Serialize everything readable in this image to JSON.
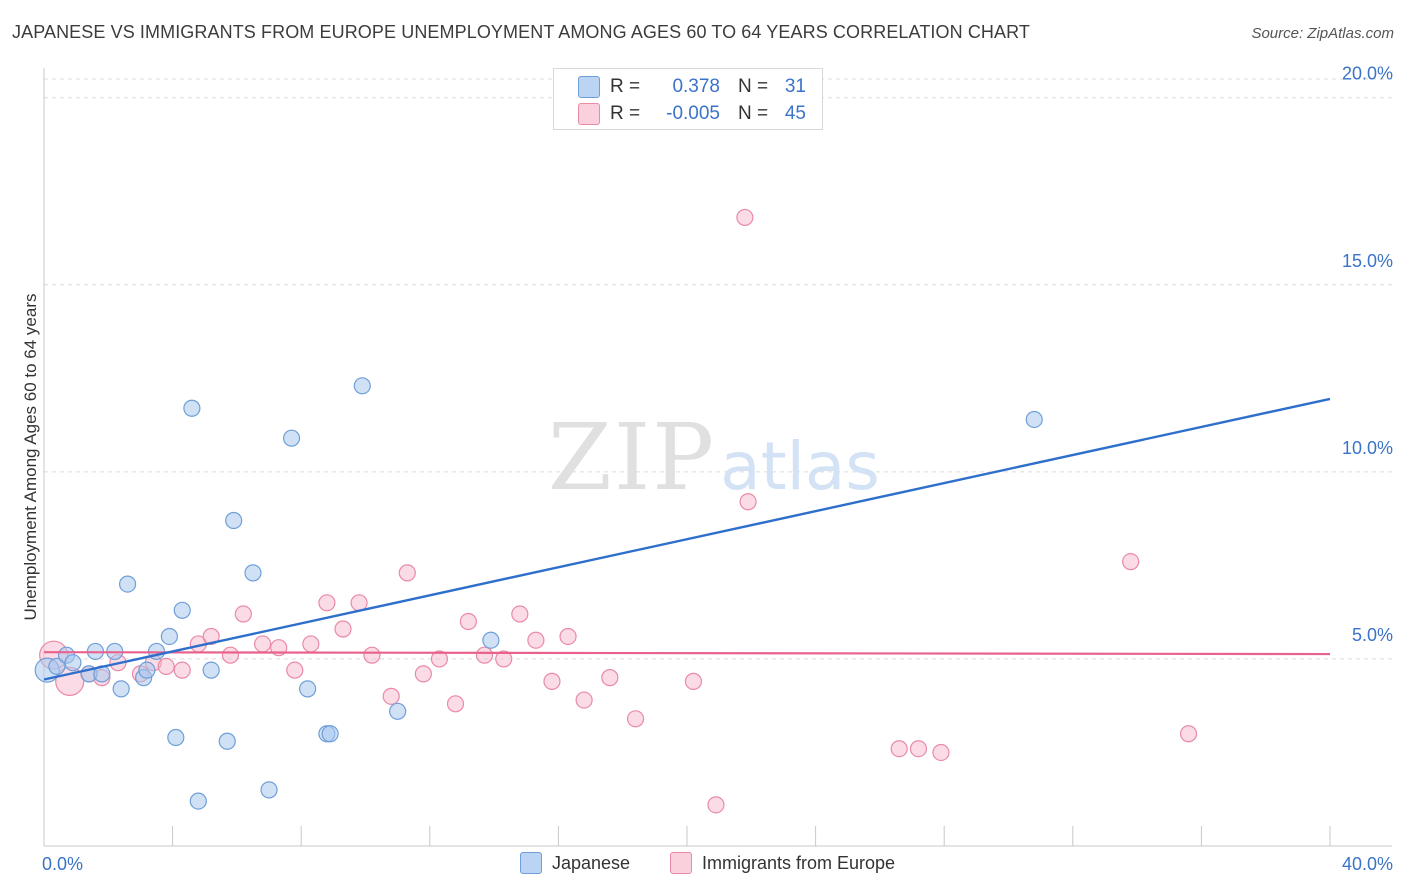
{
  "title": "JAPANESE VS IMMIGRANTS FROM EUROPE UNEMPLOYMENT AMONG AGES 60 TO 64 YEARS CORRELATION CHART",
  "source": "Source: ZipAtlas.com",
  "watermark": {
    "zip": "ZIP",
    "atlas": "atlas"
  },
  "stats": {
    "series1": {
      "r_label": "R =",
      "r_value": "0.378",
      "n_label": "N =",
      "n_value": "31"
    },
    "series2": {
      "r_label": "R =",
      "r_value": "-0.005",
      "n_label": "N =",
      "n_value": "45"
    }
  },
  "colors": {
    "japanese_fill": "#a9c8ef",
    "japanese_stroke": "#6f9fd8",
    "japanese_line": "#2f6fcc",
    "europe_fill": "#f7b8cb",
    "europe_stroke": "#e98aa6",
    "europe_line": "#e8628c",
    "grid": "#dcdcdc",
    "axis_label": "#3a73c8"
  },
  "chart_data": {
    "type": "scatter",
    "title": "JAPANESE VS IMMIGRANTS FROM EUROPE UNEMPLOYMENT AMONG AGES 60 TO 64 YEARS CORRELATION CHART",
    "xlabel": "",
    "ylabel": "Unemployment Among Ages 60 to 64 years",
    "xlim": [
      0,
      40
    ],
    "ylim": [
      0,
      20.5
    ],
    "x_tick_labels": [
      {
        "value": 0,
        "label": "0.0%"
      },
      {
        "value": 40,
        "label": "40.0%"
      }
    ],
    "y_tick_labels": [
      {
        "value": 5,
        "label": "5.0%"
      },
      {
        "value": 10,
        "label": "10.0%"
      },
      {
        "value": 15,
        "label": "15.0%"
      },
      {
        "value": 20,
        "label": "20.0%"
      }
    ],
    "legend": [
      "Japanese",
      "Immigrants from Europe"
    ],
    "series": [
      {
        "name": "Japanese",
        "r": 0.378,
        "n": 31,
        "points": [
          [
            0.1,
            4.7
          ],
          [
            0.4,
            4.8
          ],
          [
            0.7,
            5.1
          ],
          [
            0.9,
            4.9
          ],
          [
            1.4,
            4.6
          ],
          [
            1.6,
            5.2
          ],
          [
            1.8,
            4.6
          ],
          [
            2.2,
            5.2
          ],
          [
            2.4,
            4.2
          ],
          [
            2.6,
            7.0
          ],
          [
            3.1,
            4.5
          ],
          [
            3.2,
            4.7
          ],
          [
            3.5,
            5.2
          ],
          [
            3.9,
            5.6
          ],
          [
            4.1,
            2.9
          ],
          [
            4.3,
            6.3
          ],
          [
            4.6,
            11.7
          ],
          [
            4.8,
            1.2
          ],
          [
            5.2,
            4.7
          ],
          [
            5.7,
            2.8
          ],
          [
            5.9,
            8.7
          ],
          [
            6.5,
            7.3
          ],
          [
            7.0,
            1.5
          ],
          [
            7.7,
            10.9
          ],
          [
            8.2,
            4.2
          ],
          [
            8.8,
            3.0
          ],
          [
            8.9,
            3.0
          ],
          [
            9.9,
            12.3
          ],
          [
            11.0,
            3.6
          ],
          [
            13.9,
            5.5
          ],
          [
            30.8,
            11.4
          ]
        ],
        "trend": {
          "x": [
            0,
            40
          ],
          "y": [
            4.45,
            11.95
          ]
        }
      },
      {
        "name": "Immigrants from Europe",
        "r": -0.005,
        "n": 45,
        "points": [
          [
            0.3,
            5.1
          ],
          [
            0.8,
            4.4
          ],
          [
            1.4,
            4.6
          ],
          [
            1.8,
            4.5
          ],
          [
            2.3,
            4.9
          ],
          [
            3.0,
            4.6
          ],
          [
            3.4,
            4.9
          ],
          [
            3.8,
            4.8
          ],
          [
            4.3,
            4.7
          ],
          [
            4.8,
            5.4
          ],
          [
            5.2,
            5.6
          ],
          [
            5.8,
            5.1
          ],
          [
            6.2,
            6.2
          ],
          [
            6.8,
            5.4
          ],
          [
            7.3,
            5.3
          ],
          [
            7.8,
            4.7
          ],
          [
            8.3,
            5.4
          ],
          [
            8.8,
            6.5
          ],
          [
            9.3,
            5.8
          ],
          [
            9.8,
            6.5
          ],
          [
            10.2,
            5.1
          ],
          [
            10.8,
            4.0
          ],
          [
            11.3,
            7.3
          ],
          [
            11.8,
            4.6
          ],
          [
            12.3,
            5.0
          ],
          [
            12.8,
            3.8
          ],
          [
            13.2,
            6.0
          ],
          [
            13.7,
            5.1
          ],
          [
            14.3,
            5.0
          ],
          [
            14.8,
            6.2
          ],
          [
            15.3,
            5.5
          ],
          [
            15.8,
            4.4
          ],
          [
            16.3,
            5.6
          ],
          [
            16.8,
            3.9
          ],
          [
            17.6,
            4.5
          ],
          [
            18.4,
            3.4
          ],
          [
            20.2,
            4.4
          ],
          [
            20.9,
            1.1
          ],
          [
            21.8,
            16.8
          ],
          [
            21.9,
            9.2
          ],
          [
            26.6,
            2.6
          ],
          [
            27.2,
            2.6
          ],
          [
            27.9,
            2.5
          ],
          [
            33.8,
            7.6
          ],
          [
            35.6,
            3.0
          ]
        ],
        "trend": {
          "x": [
            0,
            40
          ],
          "y": [
            5.18,
            5.13
          ]
        }
      }
    ]
  }
}
